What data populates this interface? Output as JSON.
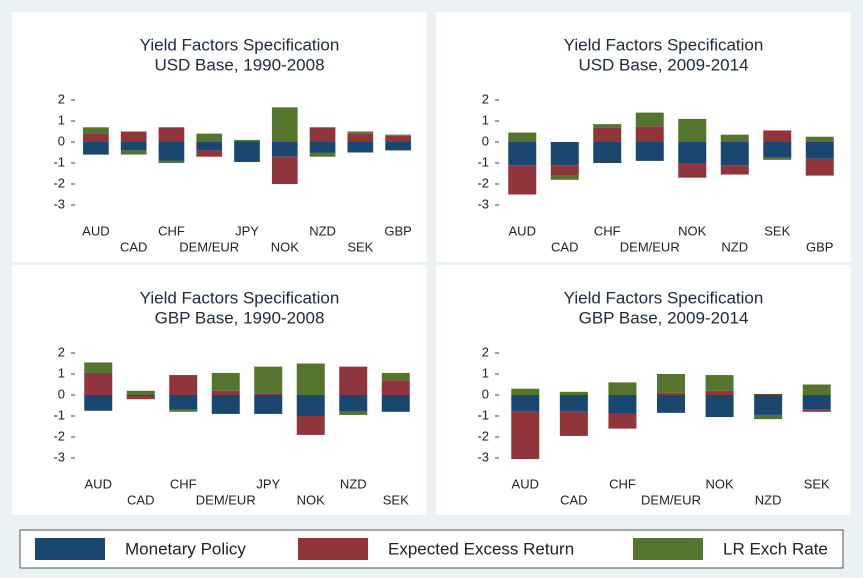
{
  "chart_data": [
    {
      "type": "bar",
      "stacked": true,
      "title": "Yield Factors Specification",
      "subtitle": "USD Base, 1990-2008",
      "categories": [
        "AUD",
        "CAD",
        "CHF",
        "DEM/EUR",
        "JPY",
        "NOK",
        "NZD",
        "SEK",
        "GBP"
      ],
      "series": [
        {
          "values": [
            -0.6,
            -0.4,
            -0.9,
            -0.4,
            -0.95,
            -0.7,
            -0.5,
            -0.5,
            -0.4
          ]
        },
        {
          "values": [
            0.4,
            0.5,
            0.7,
            -0.3,
            0.05,
            -1.3,
            0.7,
            0.4,
            0.3
          ]
        },
        {
          "values": [
            0.3,
            -0.2,
            -0.1,
            0.4,
            0.05,
            1.65,
            -0.2,
            0.1,
            0.05
          ]
        }
      ],
      "ylim": [
        -3.5,
        2.5
      ],
      "yticks": [
        -3,
        -2,
        -1,
        0,
        1,
        2
      ],
      "grid": false
    },
    {
      "type": "bar",
      "stacked": true,
      "title": "Yield Factors Specification",
      "subtitle": "USD Base, 2009-2014",
      "categories": [
        "AUD",
        "CAD",
        "CHF",
        "DEM/EUR",
        "NOK",
        "NZD",
        "SEK",
        "GBP"
      ],
      "series": [
        {
          "values": [
            -1.1,
            -1.1,
            -1.0,
            -0.9,
            -1.0,
            -1.1,
            -0.75,
            -0.8
          ]
        },
        {
          "values": [
            -1.4,
            -0.5,
            0.7,
            0.75,
            -0.7,
            -0.45,
            0.55,
            -0.8
          ]
        },
        {
          "values": [
            0.45,
            -0.2,
            0.15,
            0.65,
            1.1,
            0.35,
            -0.1,
            0.25
          ]
        }
      ],
      "ylim": [
        -3.5,
        2.5
      ],
      "yticks": [
        -3,
        -2,
        -1,
        0,
        1,
        2
      ],
      "grid": false
    },
    {
      "type": "bar",
      "stacked": true,
      "title": "Yield Factors Specification",
      "subtitle": "GBP Base, 1990-2008",
      "categories": [
        "AUD",
        "CAD",
        "CHF",
        "DEM/EUR",
        "JPY",
        "NOK",
        "NZD",
        "SEK"
      ],
      "series": [
        {
          "values": [
            -0.75,
            -0.05,
            -0.7,
            -0.9,
            -0.9,
            -1.0,
            -0.8,
            -0.8
          ]
        },
        {
          "values": [
            1.05,
            -0.15,
            0.95,
            0.2,
            0.05,
            -0.9,
            1.35,
            0.7
          ]
        },
        {
          "values": [
            0.5,
            0.2,
            -0.1,
            0.85,
            1.3,
            1.5,
            -0.15,
            0.35
          ]
        }
      ],
      "ylim": [
        -3.5,
        2.5
      ],
      "yticks": [
        -3,
        -2,
        -1,
        0,
        1,
        2
      ],
      "grid": false
    },
    {
      "type": "bar",
      "stacked": true,
      "title": "Yield Factors Specification",
      "subtitle": "GBP Base, 2009-2014",
      "categories": [
        "AUD",
        "CAD",
        "CHF",
        "DEM/EUR",
        "NOK",
        "NZD",
        "SEK"
      ],
      "series": [
        {
          "values": [
            -0.8,
            -0.8,
            -0.9,
            -0.85,
            -1.05,
            -0.95,
            -0.7
          ]
        },
        {
          "values": [
            -2.25,
            -1.15,
            -0.7,
            0.1,
            0.2,
            0.05,
            -0.1
          ]
        },
        {
          "values": [
            0.3,
            0.15,
            0.6,
            0.9,
            0.75,
            -0.2,
            0.5
          ]
        }
      ],
      "ylim": [
        -3.5,
        2.5
      ],
      "yticks": [
        -3,
        -2,
        -1,
        0,
        1,
        2
      ],
      "grid": false
    }
  ],
  "legend": {
    "position": "bottom",
    "items": [
      {
        "name": "Monetary Policy",
        "color": "#1a476f"
      },
      {
        "name": "Expected Excess Return",
        "color": "#90353b"
      },
      {
        "name": "LR Exch Rate",
        "color": "#55752f"
      }
    ]
  }
}
